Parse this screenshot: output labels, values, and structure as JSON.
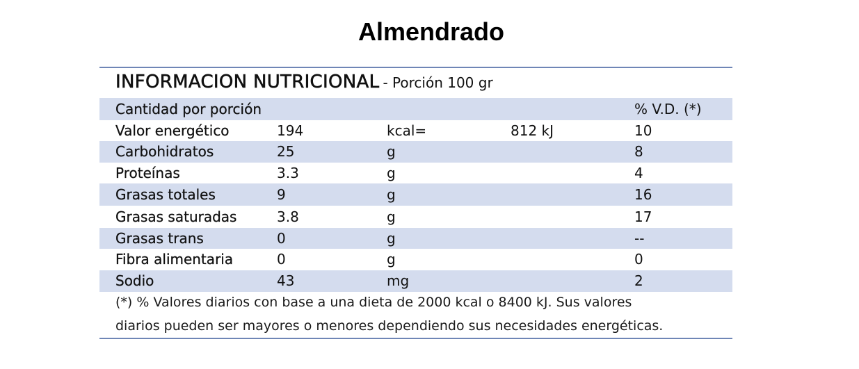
{
  "title": "Almendrado",
  "panel": {
    "heading": "INFORMACION NUTRICIONAL",
    "portion": "- Porción 100 gr",
    "columns_header": {
      "label": "Cantidad por porción",
      "vd": "% V.D. (*)"
    },
    "rows": [
      {
        "name": "Valor energético",
        "amount": "194",
        "unit": "kcal=",
        "extra": "812 kJ",
        "vd": "10"
      },
      {
        "name": "Carbohidratos",
        "amount": "25",
        "unit": "g",
        "extra": "",
        "vd": "8"
      },
      {
        "name": "Proteínas",
        "amount": "3.3",
        "unit": "g",
        "extra": "",
        "vd": "4"
      },
      {
        "name": "Grasas totales",
        "amount": "9",
        "unit": "g",
        "extra": "",
        "vd": "16"
      },
      {
        "name": "Grasas saturadas",
        "amount": "3.8",
        "unit": "g",
        "extra": "",
        "vd": "17"
      },
      {
        "name": "Grasas trans",
        "amount": "0",
        "unit": "g",
        "extra": "",
        "vd": "--"
      },
      {
        "name": "Fibra alimentaria",
        "amount": "0",
        "unit": "g",
        "extra": "",
        "vd": "0"
      },
      {
        "name": "Sodio",
        "amount": "43",
        "unit": "mg",
        "extra": "",
        "vd": "2"
      }
    ],
    "footnote": {
      "line1": "(*) % Valores diarios con base a una dieta de 2000 kcal o 8400 kJ. Sus valores",
      "line2": "diarios pueden ser mayores o menores dependiendo sus necesidades energéticas."
    }
  },
  "colors": {
    "rule": "#6f86b6",
    "band": "#d4dcee"
  }
}
